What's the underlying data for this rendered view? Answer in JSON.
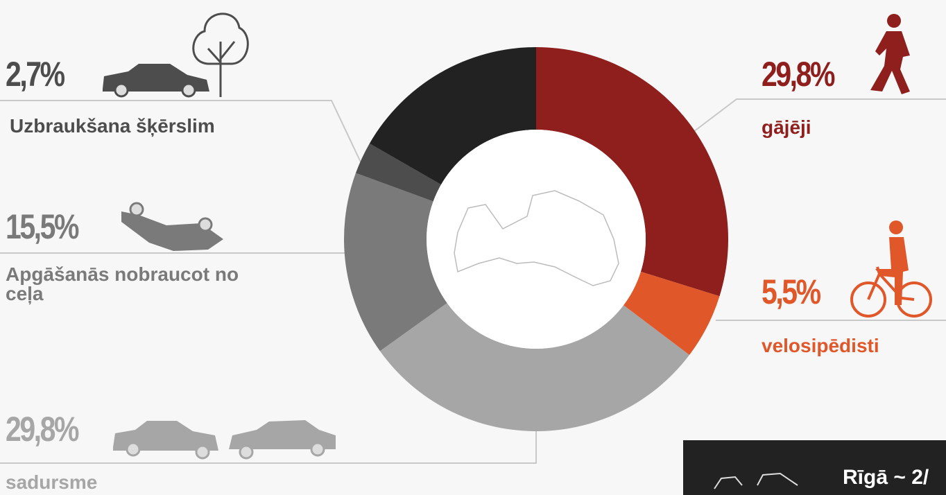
{
  "chart_data": {
    "type": "pie",
    "categories": [
      "gājēji",
      "velosipēdisti",
      "sadursme",
      "Apgāšanās nobraucot no ceļa",
      "Uzbraukšana šķērslim",
      null
    ],
    "values": [
      29.8,
      5.5,
      29.8,
      15.5,
      2.7,
      16.7
    ],
    "value_labels": [
      "29,8%",
      "5,5%",
      "29,8%",
      "15,5%",
      "2,7%",
      null
    ],
    "colors": [
      "#8e1f1d",
      "#e0572a",
      "#a6a6a6",
      "#7a7a7a",
      "#4d4d4d",
      "#222222"
    ],
    "annotation": "Rīgā ~ 2/"
  }
}
